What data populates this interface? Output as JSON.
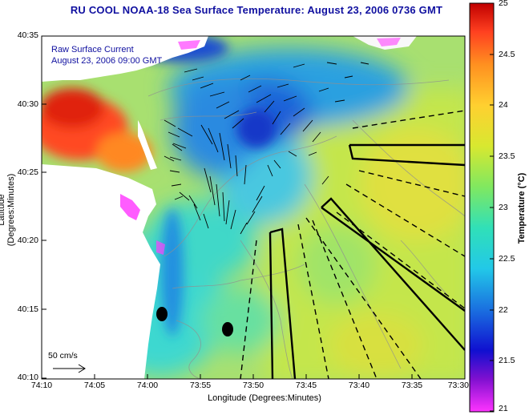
{
  "title": "RU COOL  NOAA-18  Sea Surface Temperature:  August 23, 2006 0736 GMT",
  "overlay": {
    "line1": "Raw Surface Current",
    "line2": "August 23, 2006 09:00 GMT"
  },
  "scale_label": "50 cm/s",
  "axes": {
    "xlabel": "Longitude (Degrees:Minutes)",
    "ylabel": "Latitude (Degrees:Minutes)",
    "xticks": [
      "74:10",
      "74:05",
      "74:00",
      "73:55",
      "73:50",
      "73:45",
      "73:40",
      "73:35",
      "73:30"
    ],
    "yticks": [
      "40:35",
      "40:30",
      "40:25",
      "40:20",
      "40:15",
      "40:10"
    ]
  },
  "colorbar": {
    "label": "Temperature (°C)",
    "ticks": [
      "25",
      "24.5",
      "24",
      "23.5",
      "23",
      "22.5",
      "22",
      "21.5",
      "21"
    ],
    "min": 21,
    "max": 25,
    "colors": [
      "#ff33ff",
      "#8010d0",
      "#1010d0",
      "#1a70e0",
      "#22c8e8",
      "#30e0b8",
      "#80e860",
      "#d8e830",
      "#ffd030",
      "#ff9020",
      "#ff4020",
      "#c00000"
    ]
  },
  "chart_data": {
    "type": "map",
    "region_lon_range": [
      "74:10",
      "73:30"
    ],
    "region_lat_range": [
      "40:10",
      "40:35"
    ],
    "sst_range_c": [
      21,
      25
    ]
  }
}
